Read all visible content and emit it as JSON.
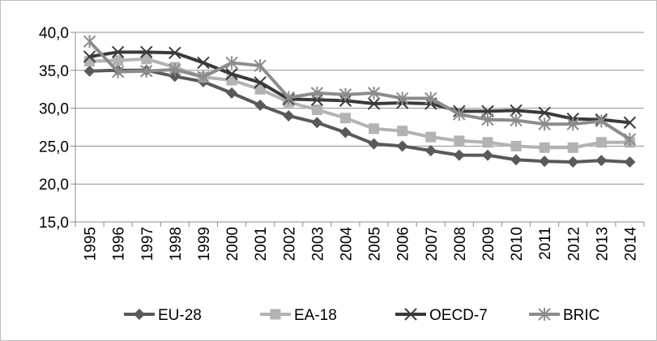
{
  "chart_data": {
    "type": "line",
    "title": "",
    "xlabel": "",
    "ylabel": "",
    "x": [
      "1995",
      "1996",
      "1997",
      "1998",
      "1999",
      "2000",
      "2001",
      "2002",
      "2003",
      "2004",
      "2005",
      "2006",
      "2007",
      "2008",
      "2009",
      "2010",
      "2011",
      "2012",
      "2013",
      "2014"
    ],
    "ylim": [
      15,
      40
    ],
    "y_ticks": [
      "15,0",
      "20,0",
      "25,0",
      "30,0",
      "35,0",
      "40,0"
    ],
    "y_tick_values": [
      15,
      20,
      25,
      30,
      35,
      40
    ],
    "grid": "horizontal",
    "legend_position": "bottom",
    "series": [
      {
        "name": "EU-28",
        "marker": "diamond",
        "color": "#595959",
        "values": [
          34.9,
          35.0,
          35.0,
          34.2,
          33.5,
          32.0,
          30.4,
          29.0,
          28.1,
          26.8,
          25.3,
          25.0,
          24.4,
          23.8,
          23.8,
          23.2,
          23.0,
          22.9,
          23.1,
          22.9
        ]
      },
      {
        "name": "EA-18",
        "marker": "square",
        "color": "#b3b3b3",
        "values": [
          36.2,
          36.3,
          36.5,
          35.4,
          34.1,
          33.7,
          32.5,
          30.8,
          29.8,
          28.7,
          27.3,
          27.0,
          26.2,
          25.7,
          25.5,
          25.0,
          24.8,
          24.8,
          25.5,
          25.5
        ]
      },
      {
        "name": "OECD-7",
        "marker": "x",
        "color": "#3a3a3a",
        "values": [
          36.8,
          37.4,
          37.4,
          37.3,
          36.0,
          34.5,
          33.4,
          31.2,
          31.1,
          31.0,
          30.6,
          30.7,
          30.6,
          29.6,
          29.6,
          29.7,
          29.4,
          28.6,
          28.5,
          28.1
        ]
      },
      {
        "name": "BRIC",
        "marker": "asterisk",
        "color": "#8c8c8c",
        "values": [
          38.8,
          34.8,
          34.9,
          35.1,
          34.1,
          36.0,
          35.6,
          31.4,
          32.0,
          31.8,
          32.0,
          31.3,
          31.3,
          29.2,
          28.5,
          28.4,
          27.9,
          27.9,
          28.3,
          25.9
        ]
      }
    ]
  }
}
